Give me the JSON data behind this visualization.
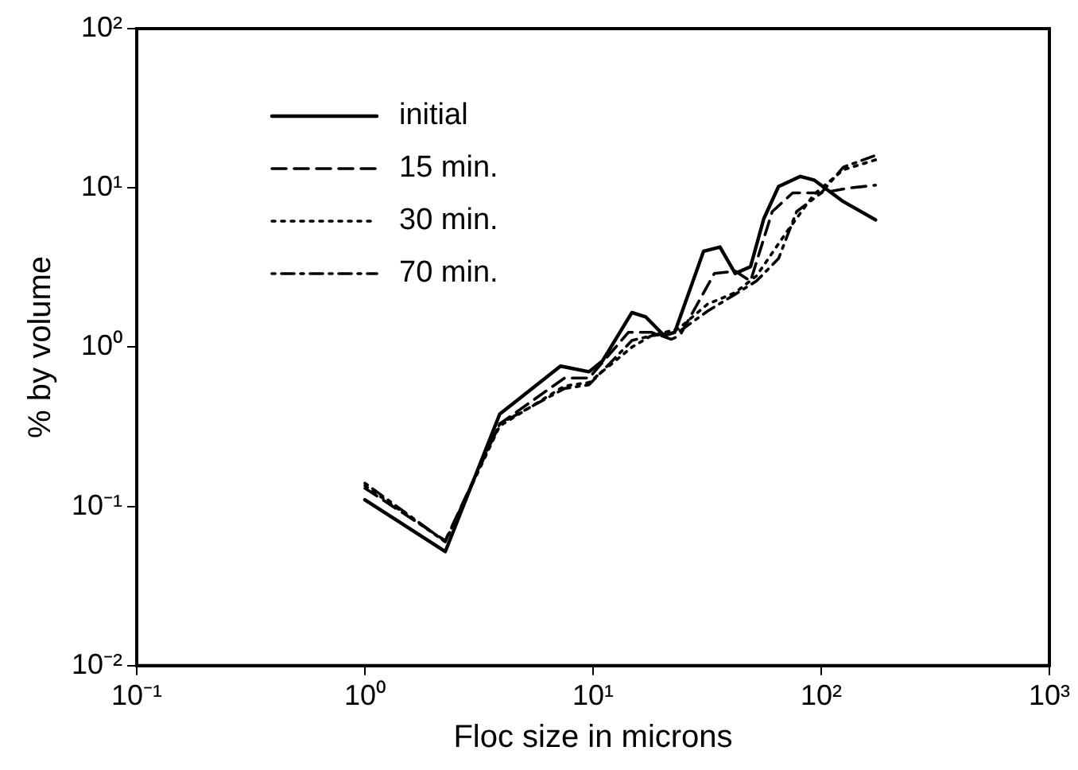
{
  "chart_data": {
    "type": "line",
    "xlabel": "Floc size in microns",
    "ylabel": "% by volume",
    "log": "xy",
    "xlim": [
      0.1,
      1000
    ],
    "xticks": [
      {
        "value": 0.1,
        "label": "10⁻¹"
      },
      {
        "value": 1,
        "label": "10⁰"
      },
      {
        "value": 10,
        "label": "10¹"
      },
      {
        "value": 100,
        "label": "10²"
      },
      {
        "value": 1000,
        "label": "10³"
      }
    ],
    "ylim": [
      0.01,
      100
    ],
    "yticks": [
      {
        "value": 0.01,
        "label": "10⁻²"
      },
      {
        "value": 0.1,
        "label": "10⁻¹"
      },
      {
        "value": 1,
        "label": "10⁰"
      },
      {
        "value": 10,
        "label": "10¹"
      },
      {
        "value": 100,
        "label": "10²"
      }
    ],
    "grid": false,
    "legend": "top left",
    "marker": "none",
    "series": [
      {
        "name": "initial",
        "color": "#000000",
        "line_style": "solid",
        "x": [
          1,
          2.25,
          3.9,
          7.2,
          9.6,
          11,
          14.8,
          17,
          20.5,
          22.8,
          30.5,
          36,
          42,
          49,
          56,
          65,
          81,
          93,
          125,
          173
        ],
        "values": [
          0.11,
          0.052,
          0.38,
          0.76,
          0.7,
          0.82,
          1.65,
          1.55,
          1.18,
          1.24,
          4.0,
          4.25,
          2.9,
          3.2,
          6.4,
          10.2,
          11.8,
          11.2,
          8.2,
          6.3
        ]
      },
      {
        "name": "15 min.",
        "color": "#000000",
        "line_style": "dashed",
        "x": [
          1,
          2.25,
          3.9,
          7.5,
          9.6,
          14.3,
          18,
          22,
          24,
          34,
          42,
          49,
          61,
          75,
          100,
          134,
          173
        ],
        "values": [
          0.13,
          0.061,
          0.33,
          0.64,
          0.64,
          1.24,
          1.24,
          1.12,
          1.18,
          2.9,
          3.0,
          2.6,
          7.1,
          9.3,
          9.3,
          10,
          10.4
        ]
      },
      {
        "name": "30 min.",
        "color": "#000000",
        "line_style": "dotted",
        "x": [
          1,
          2.25,
          3.9,
          7.5,
          9.6,
          14.8,
          18,
          23.6,
          31.7,
          42,
          52,
          70,
          93,
          125,
          173
        ],
        "values": [
          0.135,
          0.06,
          0.32,
          0.57,
          0.6,
          1.0,
          1.18,
          1.3,
          1.86,
          2.2,
          2.8,
          5.2,
          9.1,
          13,
          15
        ]
      },
      {
        "name": "70 min.",
        "color": "#000000",
        "line_style": "dashdot",
        "x": [
          1,
          2.25,
          3.9,
          7.5,
          9.6,
          14.8,
          18,
          23.6,
          31.7,
          42,
          52,
          65,
          78,
          100,
          125,
          173
        ],
        "values": [
          0.14,
          0.06,
          0.33,
          0.55,
          0.58,
          1.1,
          1.18,
          1.24,
          1.68,
          2.15,
          2.6,
          3.6,
          7.1,
          9.3,
          13.5,
          16
        ]
      }
    ]
  }
}
